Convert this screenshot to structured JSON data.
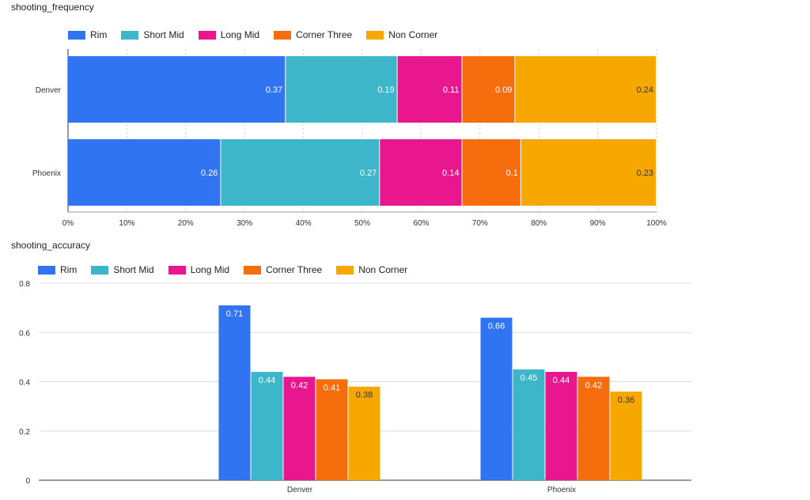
{
  "chart_data": [
    {
      "type": "bar",
      "orientation": "horizontal",
      "stacked": true,
      "title": "shooting_frequency",
      "categories": [
        "Denver",
        "Phoenix"
      ],
      "series": [
        {
          "name": "Rim",
          "color": "#3174f1",
          "values": [
            0.37,
            0.26
          ]
        },
        {
          "name": "Short Mid",
          "color": "#3db6c9",
          "values": [
            0.19,
            0.27
          ]
        },
        {
          "name": "Long Mid",
          "color": "#e9178d",
          "values": [
            0.11,
            0.14
          ]
        },
        {
          "name": "Corner Three",
          "color": "#f66d0d",
          "values": [
            0.09,
            0.1
          ]
        },
        {
          "name": "Non Corner",
          "color": "#f6a800",
          "values": [
            0.24,
            0.23
          ]
        }
      ],
      "xlim": [
        0,
        1
      ],
      "x_ticks": [
        "0%",
        "10%",
        "20%",
        "30%",
        "40%",
        "50%",
        "60%",
        "70%",
        "80%",
        "90%",
        "100%"
      ],
      "legend": "top-left",
      "grid": true
    },
    {
      "type": "bar",
      "orientation": "vertical",
      "stacked": false,
      "title": "shooting_accuracy",
      "categories": [
        "Denver",
        "Phoenix"
      ],
      "series": [
        {
          "name": "Rim",
          "color": "#3174f1",
          "values": [
            0.71,
            0.66
          ]
        },
        {
          "name": "Short Mid",
          "color": "#3db6c9",
          "values": [
            0.44,
            0.45
          ]
        },
        {
          "name": "Long Mid",
          "color": "#e9178d",
          "values": [
            0.42,
            0.44
          ]
        },
        {
          "name": "Corner Three",
          "color": "#f66d0d",
          "values": [
            0.41,
            0.42
          ]
        },
        {
          "name": "Non Corner",
          "color": "#f6a800",
          "values": [
            0.38,
            0.36
          ]
        }
      ],
      "ylim": [
        0,
        0.8
      ],
      "y_ticks": [
        "0",
        "0.2",
        "0.4",
        "0.6",
        "0.8"
      ],
      "legend": "top-left",
      "grid": true
    }
  ]
}
